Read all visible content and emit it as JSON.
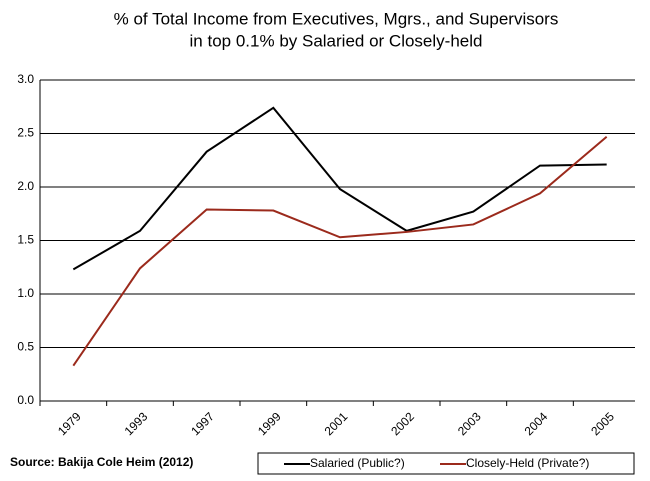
{
  "chart_data": {
    "type": "line",
    "title": [
      "% of Total Income from Executives, Mgrs., and Supervisors",
      "in top 0.1% by Salaried or Closely-held"
    ],
    "source": "Source: Bakija Cole Heim (2012)",
    "categories": [
      "1979",
      "1993",
      "1997",
      "1999",
      "2001",
      "2002",
      "2003",
      "2004",
      "2005"
    ],
    "series": [
      {
        "name": "Salaried (Public?)",
        "color": "#000000",
        "values": [
          1.23,
          1.59,
          2.33,
          2.74,
          1.98,
          1.59,
          1.77,
          2.2,
          2.21
        ]
      },
      {
        "name": "Closely-Held (Private?)",
        "color": "#9b2a1c",
        "values": [
          0.33,
          1.24,
          1.79,
          1.78,
          1.53,
          1.58,
          1.65,
          1.94,
          2.47
        ]
      }
    ],
    "ylim": [
      0,
      3
    ],
    "yticks": [
      {
        "value": 0,
        "label": "0.0"
      },
      {
        "value": 0.5,
        "label": "0.5"
      },
      {
        "value": 1,
        "label": "1.0"
      },
      {
        "value": 1.5,
        "label": "1.5"
      },
      {
        "value": 2,
        "label": "2.0"
      },
      {
        "value": 2.5,
        "label": "2.5"
      },
      {
        "value": 3,
        "label": "3.0"
      }
    ],
    "grid": true,
    "legend": "bottom-right"
  }
}
